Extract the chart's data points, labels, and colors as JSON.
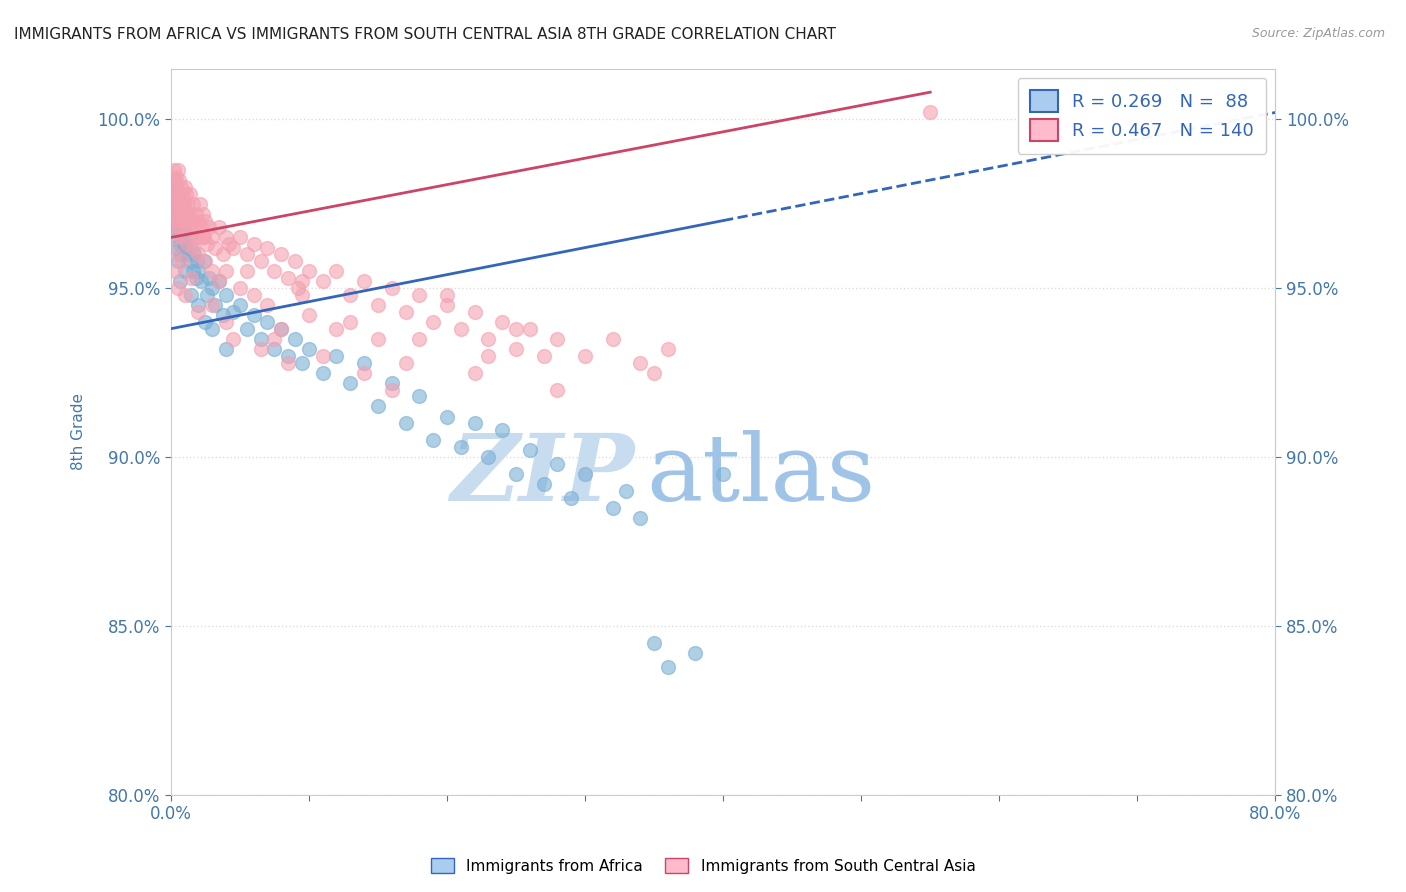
{
  "title": "IMMIGRANTS FROM AFRICA VS IMMIGRANTS FROM SOUTH CENTRAL ASIA 8TH GRADE CORRELATION CHART",
  "source": "Source: ZipAtlas.com",
  "ylabel": "8th Grade",
  "xlim": [
    0.0,
    80.0
  ],
  "ylim": [
    80.0,
    101.5
  ],
  "yticks": [
    80.0,
    85.0,
    90.0,
    95.0,
    100.0
  ],
  "xticks": [
    0.0,
    10.0,
    20.0,
    30.0,
    40.0,
    50.0,
    60.0,
    70.0,
    80.0
  ],
  "xticklabels": [
    "0.0%",
    "",
    "",
    "",
    "",
    "",
    "",
    "",
    "80.0%"
  ],
  "yticklabels": [
    "80.0%",
    "85.0%",
    "90.0%",
    "95.0%",
    "100.0%"
  ],
  "blue_color": "#7BAFD4",
  "pink_color": "#F4A0B0",
  "blue_R": 0.269,
  "blue_N": 88,
  "pink_R": 0.467,
  "pink_N": 140,
  "blue_line_color": "#3366BB",
  "pink_line_color": "#CC4466",
  "blue_line_solid_end": 40.0,
  "blue_line_x0": 0.0,
  "blue_line_x1": 80.0,
  "blue_line_y0": 93.8,
  "blue_line_y1": 100.2,
  "pink_line_x0": 0.0,
  "pink_line_x1": 55.0,
  "pink_line_y0": 96.5,
  "pink_line_y1": 100.8,
  "background_color": "#FFFFFF",
  "grid_color": "#DDDDDD",
  "title_color": "#222222",
  "axis_label_color": "#4477AA",
  "tick_color": "#4477AA",
  "watermark_zip_color": "#C8DCF0",
  "watermark_atlas_color": "#A0C4E8",
  "blue_scatter": [
    [
      0.1,
      97.2
    ],
    [
      0.2,
      97.8
    ],
    [
      0.25,
      98.2
    ],
    [
      0.3,
      97.0
    ],
    [
      0.35,
      98.0
    ],
    [
      0.4,
      97.5
    ],
    [
      0.45,
      96.8
    ],
    [
      0.5,
      97.3
    ],
    [
      0.55,
      96.5
    ],
    [
      0.6,
      97.0
    ],
    [
      0.65,
      96.3
    ],
    [
      0.7,
      97.8
    ],
    [
      0.75,
      96.0
    ],
    [
      0.8,
      97.2
    ],
    [
      0.85,
      96.5
    ],
    [
      0.9,
      97.5
    ],
    [
      0.95,
      96.2
    ],
    [
      1.0,
      97.0
    ],
    [
      1.05,
      96.8
    ],
    [
      1.1,
      96.3
    ],
    [
      1.15,
      97.2
    ],
    [
      1.2,
      96.0
    ],
    [
      1.3,
      96.5
    ],
    [
      1.4,
      95.8
    ],
    [
      1.5,
      96.2
    ],
    [
      1.6,
      95.5
    ],
    [
      1.7,
      96.0
    ],
    [
      1.8,
      95.3
    ],
    [
      1.9,
      95.8
    ],
    [
      2.0,
      95.5
    ],
    [
      2.2,
      95.2
    ],
    [
      2.4,
      95.8
    ],
    [
      2.6,
      94.8
    ],
    [
      2.8,
      95.3
    ],
    [
      3.0,
      95.0
    ],
    [
      3.2,
      94.5
    ],
    [
      3.5,
      95.2
    ],
    [
      3.8,
      94.2
    ],
    [
      4.0,
      94.8
    ],
    [
      4.5,
      94.3
    ],
    [
      5.0,
      94.5
    ],
    [
      5.5,
      93.8
    ],
    [
      6.0,
      94.2
    ],
    [
      6.5,
      93.5
    ],
    [
      7.0,
      94.0
    ],
    [
      7.5,
      93.2
    ],
    [
      8.0,
      93.8
    ],
    [
      8.5,
      93.0
    ],
    [
      9.0,
      93.5
    ],
    [
      9.5,
      92.8
    ],
    [
      10.0,
      93.2
    ],
    [
      11.0,
      92.5
    ],
    [
      12.0,
      93.0
    ],
    [
      13.0,
      92.2
    ],
    [
      14.0,
      92.8
    ],
    [
      15.0,
      91.5
    ],
    [
      16.0,
      92.2
    ],
    [
      17.0,
      91.0
    ],
    [
      18.0,
      91.8
    ],
    [
      19.0,
      90.5
    ],
    [
      20.0,
      91.2
    ],
    [
      21.0,
      90.3
    ],
    [
      22.0,
      91.0
    ],
    [
      23.0,
      90.0
    ],
    [
      24.0,
      90.8
    ],
    [
      25.0,
      89.5
    ],
    [
      26.0,
      90.2
    ],
    [
      27.0,
      89.2
    ],
    [
      28.0,
      89.8
    ],
    [
      29.0,
      88.8
    ],
    [
      30.0,
      89.5
    ],
    [
      32.0,
      88.5
    ],
    [
      33.0,
      89.0
    ],
    [
      34.0,
      88.2
    ],
    [
      35.0,
      84.5
    ],
    [
      36.0,
      83.8
    ],
    [
      38.0,
      84.2
    ],
    [
      40.0,
      89.5
    ],
    [
      0.15,
      96.8
    ],
    [
      0.3,
      96.2
    ],
    [
      0.5,
      95.8
    ],
    [
      0.7,
      95.2
    ],
    [
      1.0,
      95.5
    ],
    [
      1.5,
      94.8
    ],
    [
      2.0,
      94.5
    ],
    [
      2.5,
      94.0
    ],
    [
      3.0,
      93.8
    ],
    [
      4.0,
      93.2
    ]
  ],
  "pink_scatter": [
    [
      0.1,
      98.0
    ],
    [
      0.15,
      97.5
    ],
    [
      0.2,
      98.5
    ],
    [
      0.25,
      97.8
    ],
    [
      0.3,
      98.2
    ],
    [
      0.35,
      97.5
    ],
    [
      0.4,
      98.0
    ],
    [
      0.45,
      97.3
    ],
    [
      0.5,
      98.5
    ],
    [
      0.55,
      97.0
    ],
    [
      0.6,
      98.2
    ],
    [
      0.65,
      97.5
    ],
    [
      0.7,
      97.8
    ],
    [
      0.75,
      98.0
    ],
    [
      0.8,
      97.3
    ],
    [
      0.85,
      97.8
    ],
    [
      0.9,
      97.2
    ],
    [
      0.95,
      97.5
    ],
    [
      1.0,
      98.0
    ],
    [
      1.05,
      97.3
    ],
    [
      1.1,
      97.8
    ],
    [
      1.15,
      97.0
    ],
    [
      1.2,
      97.5
    ],
    [
      1.3,
      97.2
    ],
    [
      1.4,
      97.8
    ],
    [
      1.5,
      97.0
    ],
    [
      1.6,
      97.5
    ],
    [
      1.7,
      96.8
    ],
    [
      1.8,
      97.2
    ],
    [
      1.9,
      96.5
    ],
    [
      2.0,
      97.0
    ],
    [
      2.1,
      97.5
    ],
    [
      2.2,
      96.8
    ],
    [
      2.3,
      97.2
    ],
    [
      2.4,
      96.5
    ],
    [
      2.5,
      97.0
    ],
    [
      2.6,
      96.3
    ],
    [
      2.8,
      96.8
    ],
    [
      3.0,
      96.5
    ],
    [
      3.2,
      96.2
    ],
    [
      3.5,
      96.8
    ],
    [
      3.8,
      96.0
    ],
    [
      4.0,
      96.5
    ],
    [
      4.5,
      96.2
    ],
    [
      5.0,
      96.5
    ],
    [
      5.5,
      96.0
    ],
    [
      6.0,
      96.3
    ],
    [
      6.5,
      95.8
    ],
    [
      7.0,
      96.2
    ],
    [
      7.5,
      95.5
    ],
    [
      8.0,
      96.0
    ],
    [
      8.5,
      95.3
    ],
    [
      9.0,
      95.8
    ],
    [
      9.5,
      95.2
    ],
    [
      10.0,
      95.5
    ],
    [
      11.0,
      95.2
    ],
    [
      12.0,
      95.5
    ],
    [
      13.0,
      94.8
    ],
    [
      14.0,
      95.2
    ],
    [
      15.0,
      94.5
    ],
    [
      16.0,
      95.0
    ],
    [
      17.0,
      94.3
    ],
    [
      18.0,
      94.8
    ],
    [
      19.0,
      94.0
    ],
    [
      20.0,
      94.5
    ],
    [
      21.0,
      93.8
    ],
    [
      22.0,
      94.3
    ],
    [
      23.0,
      93.5
    ],
    [
      24.0,
      94.0
    ],
    [
      25.0,
      93.2
    ],
    [
      26.0,
      93.8
    ],
    [
      27.0,
      93.0
    ],
    [
      28.0,
      93.5
    ],
    [
      30.0,
      93.0
    ],
    [
      32.0,
      93.5
    ],
    [
      34.0,
      92.8
    ],
    [
      36.0,
      93.2
    ],
    [
      0.2,
      97.0
    ],
    [
      0.3,
      96.5
    ],
    [
      0.4,
      97.2
    ],
    [
      0.5,
      96.8
    ],
    [
      0.6,
      97.0
    ],
    [
      0.8,
      96.5
    ],
    [
      1.0,
      96.8
    ],
    [
      1.2,
      96.3
    ],
    [
      1.4,
      96.8
    ],
    [
      1.6,
      96.2
    ],
    [
      1.8,
      96.5
    ],
    [
      2.0,
      96.0
    ],
    [
      2.5,
      95.8
    ],
    [
      3.0,
      95.5
    ],
    [
      3.5,
      95.2
    ],
    [
      4.0,
      95.5
    ],
    [
      5.0,
      95.0
    ],
    [
      6.0,
      94.8
    ],
    [
      7.0,
      94.5
    ],
    [
      8.0,
      93.8
    ],
    [
      10.0,
      94.2
    ],
    [
      12.0,
      93.8
    ],
    [
      15.0,
      93.5
    ],
    [
      20.0,
      94.8
    ],
    [
      25.0,
      93.8
    ],
    [
      0.3,
      95.5
    ],
    [
      0.5,
      95.0
    ],
    [
      1.0,
      94.8
    ],
    [
      2.0,
      94.3
    ],
    [
      3.0,
      94.5
    ],
    [
      4.5,
      93.5
    ],
    [
      6.5,
      93.2
    ],
    [
      8.5,
      92.8
    ],
    [
      11.0,
      93.0
    ],
    [
      14.0,
      92.5
    ],
    [
      17.0,
      92.8
    ],
    [
      22.0,
      92.5
    ],
    [
      28.0,
      92.0
    ],
    [
      35.0,
      92.5
    ],
    [
      55.0,
      100.2
    ],
    [
      0.1,
      97.8
    ],
    [
      0.4,
      98.3
    ],
    [
      0.7,
      97.5
    ],
    [
      1.3,
      97.0
    ],
    [
      2.3,
      96.5
    ],
    [
      5.5,
      95.5
    ],
    [
      9.5,
      94.8
    ],
    [
      13.0,
      94.0
    ],
    [
      18.0,
      93.5
    ],
    [
      23.0,
      93.0
    ],
    [
      0.25,
      96.0
    ],
    [
      0.8,
      95.8
    ],
    [
      1.5,
      95.3
    ],
    [
      4.0,
      94.0
    ],
    [
      7.5,
      93.5
    ],
    [
      16.0,
      92.0
    ],
    [
      4.2,
      96.3
    ],
    [
      9.2,
      95.0
    ]
  ]
}
